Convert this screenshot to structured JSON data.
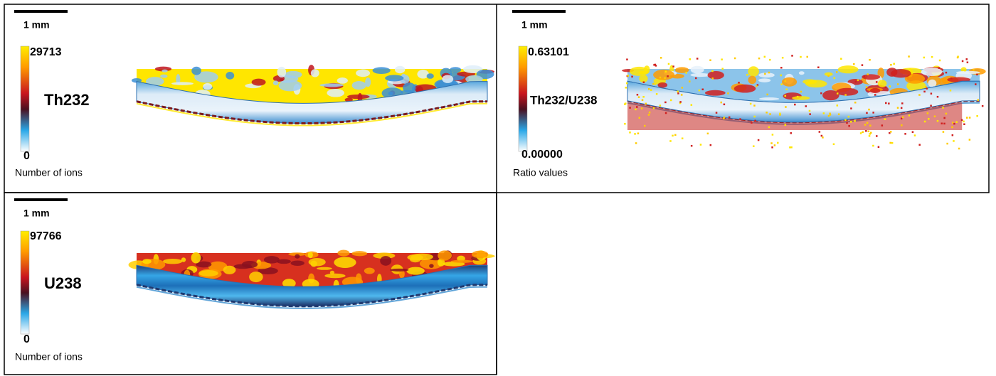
{
  "panels": [
    {
      "scale_bar": "1 mm",
      "max": "29713",
      "element": "Th232",
      "min": "0",
      "caption": "Number of ions"
    },
    {
      "scale_bar": "1 mm",
      "max": "0.63101",
      "element": "Th232/U238",
      "min": "0.00000",
      "caption": "Ratio values"
    },
    {
      "scale_bar": "1 mm",
      "max": "97766",
      "element": "U238",
      "min": "0",
      "caption": "Number of ions"
    }
  ]
}
